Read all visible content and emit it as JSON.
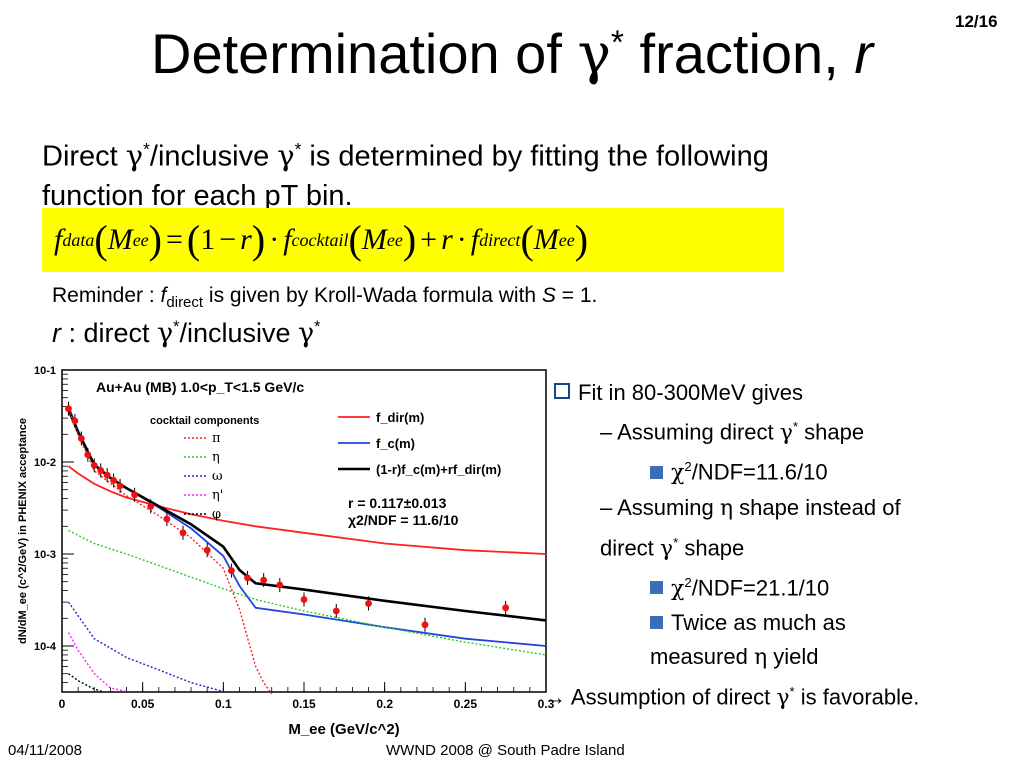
{
  "page_number": "12/16",
  "title": {
    "text": "Determination of ",
    "gamma": "γ",
    "star": "*",
    "text2": " fraction, ",
    "r": "r"
  },
  "intro": {
    "p1": "Direct ",
    "g": "γ",
    "s": "*",
    "p2": "/inclusive ",
    "p3": " is determined by fitting the following",
    "line2": "function for each pT bin."
  },
  "formula": {
    "f": "f",
    "data": "data",
    "M": "M",
    "ee": "ee",
    "eq": "=",
    "one": "1",
    "minus": "−",
    "r": "r",
    "dot": "·",
    "cocktail": "cocktail",
    "plus": "+",
    "direct": "direct"
  },
  "reminder": {
    "pre": "Reminder : ",
    "f": "f",
    "sub": "direct",
    "mid": " is given by Kroll-Wada formula with ",
    "S": "S",
    "post": " = 1."
  },
  "rdef": {
    "r": "r",
    "pre": " : direct ",
    "g": "γ",
    "s": "*",
    "mid": "/inclusive "
  },
  "bullets": {
    "b1": "Fit in 80-300MeV gives",
    "b2a": "– Assuming direct ",
    "b2b": " shape",
    "b3": "/NDF=11.6/10",
    "b4a": "– Assuming ",
    "eta": "η",
    "b4b": " shape instead of",
    "b4c": "direct ",
    "b4d": " shape",
    "b5": "/NDF=21.1/10",
    "b6a": "Twice as much as",
    "b6b": "measured ",
    "b6c": " yield",
    "b7a": "→ Assumption of direct ",
    "b7b": " is favorable.",
    "chi": "χ",
    "two": "2",
    "gamma": "γ",
    "star": "*"
  },
  "footer": {
    "date": "04/11/2008",
    "conference": "WWND 2008 @ South Padre Island"
  },
  "chart_data": {
    "type": "line",
    "title": "Au+Au (MB) 1.0<p_T<1.5 GeV/c",
    "xlabel": "M_ee (GeV/c^2)",
    "ylabel": "dN/dM_ee (c^2/GeV) in PHENIX acceptance",
    "xlim": [
      0,
      0.3
    ],
    "ylim_log10": [
      -4.5,
      -1
    ],
    "y_log": true,
    "x_ticks": [
      "0",
      "0.05",
      "0.1",
      "0.15",
      "0.2",
      "0.25",
      "0.3"
    ],
    "y_ticks": [
      "10-1",
      "10-2",
      "10-3",
      "10-4"
    ],
    "legend_header": "cocktail components",
    "legend_components": [
      {
        "name": "π",
        "color": "#ff2020"
      },
      {
        "name": "η",
        "color": "#22cc22"
      },
      {
        "name": "ω",
        "color": "#2222cc"
      },
      {
        "name": "η'",
        "color": "#ff22ff"
      },
      {
        "name": "φ",
        "color": "#000000"
      }
    ],
    "legend_fits": [
      {
        "name": "f_dir(m)",
        "color": "#ff2020"
      },
      {
        "name": "f_c(m)",
        "color": "#2244dd"
      },
      {
        "name": "(1-r)f_c(m)+rf_dir(m)",
        "color": "#000000"
      }
    ],
    "fit_result": "r = 0.117±0.013",
    "chi2_text": "χ2/NDF = 11.6/10",
    "points": {
      "x": [
        0.004,
        0.008,
        0.012,
        0.016,
        0.02,
        0.024,
        0.028,
        0.032,
        0.036,
        0.045,
        0.055,
        0.065,
        0.075,
        0.09,
        0.105,
        0.115,
        0.125,
        0.135,
        0.15,
        0.17,
        0.19,
        0.225,
        0.275
      ],
      "y": [
        0.038,
        0.028,
        0.018,
        0.012,
        0.0092,
        0.0081,
        0.0072,
        0.0063,
        0.0055,
        0.0044,
        0.0033,
        0.0024,
        0.0017,
        0.0011,
        0.00066,
        0.00055,
        0.00052,
        0.00046,
        0.00032,
        0.00024,
        0.00029,
        0.00017,
        0.00026
      ]
    },
    "series": [
      {
        "name": "f_dir(m)",
        "color": "#ff2020",
        "style": "solid",
        "x": [
          0.004,
          0.01,
          0.02,
          0.03,
          0.04,
          0.06,
          0.08,
          0.1,
          0.12,
          0.15,
          0.2,
          0.25,
          0.3
        ],
        "y": [
          0.009,
          0.0075,
          0.0058,
          0.0048,
          0.0041,
          0.0033,
          0.0027,
          0.0023,
          0.002,
          0.0017,
          0.0013,
          0.0011,
          0.001
        ]
      },
      {
        "name": "f_c(m)",
        "color": "#2244dd",
        "style": "solid",
        "x": [
          0.004,
          0.01,
          0.02,
          0.03,
          0.04,
          0.06,
          0.08,
          0.1,
          0.11,
          0.12,
          0.15,
          0.2,
          0.25,
          0.3
        ],
        "y": [
          0.04,
          0.022,
          0.0095,
          0.0068,
          0.0052,
          0.0032,
          0.0019,
          0.00095,
          0.00045,
          0.00026,
          0.00022,
          0.00016,
          0.00012,
          0.0001
        ]
      },
      {
        "name": "(1-r)f_c(m)+rf_dir(m)",
        "color": "#000000",
        "style": "solid",
        "x": [
          0.004,
          0.01,
          0.02,
          0.03,
          0.04,
          0.06,
          0.08,
          0.1,
          0.11,
          0.12,
          0.15,
          0.2,
          0.25,
          0.3
        ],
        "y": [
          0.037,
          0.021,
          0.0093,
          0.0067,
          0.0052,
          0.0033,
          0.0021,
          0.0012,
          0.00067,
          0.00048,
          0.00041,
          0.00031,
          0.00024,
          0.00019
        ]
      },
      {
        "name": "π",
        "color": "#ff2020",
        "style": "dotted",
        "x": [
          0.004,
          0.01,
          0.02,
          0.04,
          0.06,
          0.08,
          0.1,
          0.11,
          0.12,
          0.125,
          0.13
        ],
        "y": [
          0.038,
          0.02,
          0.008,
          0.0043,
          0.0026,
          0.0015,
          0.0007,
          0.00025,
          6e-05,
          4e-05,
          3e-05
        ]
      },
      {
        "name": "η",
        "color": "#22cc22",
        "style": "dotted",
        "x": [
          0.004,
          0.02,
          0.04,
          0.06,
          0.08,
          0.1,
          0.12,
          0.15,
          0.2,
          0.25,
          0.3
        ],
        "y": [
          0.0018,
          0.0013,
          0.001,
          0.00075,
          0.00056,
          0.00042,
          0.00032,
          0.00024,
          0.00016,
          0.00011,
          8e-05
        ]
      },
      {
        "name": "ω",
        "color": "#2222cc",
        "style": "dotted",
        "x": [
          0.004,
          0.02,
          0.04,
          0.06,
          0.08,
          0.1
        ],
        "y": [
          0.0003,
          0.00012,
          7.5e-05,
          5.5e-05,
          4e-05,
          3.2e-05
        ]
      },
      {
        "name": "η'",
        "color": "#ff22ff",
        "style": "dotted",
        "x": [
          0.004,
          0.01,
          0.02,
          0.03,
          0.04
        ],
        "y": [
          0.00014,
          9e-05,
          5e-05,
          3.5e-05,
          3.2e-05
        ]
      },
      {
        "name": "φ",
        "color": "#000000",
        "style": "dotted",
        "x": [
          0.004,
          0.01,
          0.02,
          0.025
        ],
        "y": [
          5e-05,
          4.2e-05,
          3.4e-05,
          3.2e-05
        ]
      }
    ]
  }
}
